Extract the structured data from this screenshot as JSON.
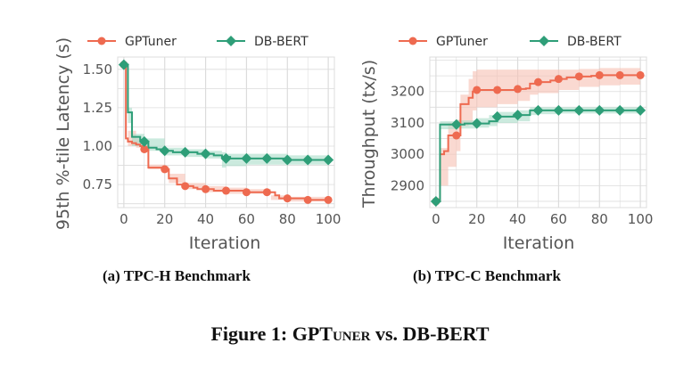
{
  "figure_caption": {
    "label": "Figure 1:",
    "name_main": "GPT",
    "name_smallcaps": "uner",
    "rest": "vs. DB-BERT"
  },
  "subcaptions": {
    "a": "(a) TPC-H Benchmark",
    "b": "(b) TPC-C Benchmark"
  },
  "colors": {
    "gptuner": "#ee6a50",
    "dbbert": "#2e9e78",
    "gptuner_band": "#f7c0b2",
    "dbbert_band": "#a9dcc8",
    "grid": "#dcdcdc",
    "axis_text": "#555555"
  },
  "chart_data": [
    {
      "type": "line",
      "xlabel": "Iteration",
      "ylabel": "95th %-tile Latency (s)",
      "xlim": [
        -3,
        103
      ],
      "ylim": [
        0.6,
        1.58
      ],
      "xticks": [
        0,
        20,
        40,
        60,
        80,
        100
      ],
      "yticks": [
        0.75,
        1.0,
        1.25,
        1.5
      ],
      "ytick_labels": [
        "0.75",
        "1.00",
        "1.25",
        "1.50"
      ],
      "grid": true,
      "legend": "top",
      "series": [
        {
          "name": "GPTuner",
          "marker": "circle",
          "color": "#ee6a50",
          "x": [
            0,
            1,
            2,
            4,
            6,
            8,
            10,
            12,
            16,
            18,
            20,
            22,
            26,
            30,
            34,
            36,
            40,
            44,
            50,
            56,
            60,
            64,
            70,
            74,
            76,
            80,
            84,
            90,
            94,
            100
          ],
          "y": [
            1.53,
            1.05,
            1.03,
            1.02,
            1.01,
            1.0,
            0.98,
            0.86,
            0.86,
            0.86,
            0.85,
            0.79,
            0.75,
            0.74,
            0.73,
            0.72,
            0.72,
            0.71,
            0.71,
            0.71,
            0.7,
            0.7,
            0.7,
            0.68,
            0.66,
            0.66,
            0.66,
            0.65,
            0.65,
            0.65
          ],
          "marker_x": [
            0,
            10,
            20,
            30,
            40,
            50,
            60,
            70,
            80,
            90,
            100
          ],
          "marker_y": [
            1.53,
            0.98,
            0.85,
            0.74,
            0.72,
            0.71,
            0.7,
            0.7,
            0.66,
            0.65,
            0.65
          ],
          "band_x": [
            0,
            2,
            6,
            10,
            12,
            20,
            22,
            30,
            40,
            50,
            60,
            70,
            72,
            80,
            90,
            100
          ],
          "band_lo": [
            1.53,
            1.0,
            0.99,
            0.96,
            0.85,
            0.84,
            0.76,
            0.72,
            0.7,
            0.69,
            0.69,
            0.69,
            0.65,
            0.64,
            0.64,
            0.64
          ],
          "band_hi": [
            1.53,
            1.1,
            1.05,
            1.02,
            0.88,
            0.87,
            0.82,
            0.76,
            0.74,
            0.73,
            0.72,
            0.72,
            0.68,
            0.67,
            0.67,
            0.67
          ]
        },
        {
          "name": "DB-BERT",
          "marker": "diamond",
          "color": "#2e9e78",
          "x": [
            0,
            2,
            4,
            8,
            10,
            12,
            16,
            20,
            24,
            30,
            36,
            40,
            44,
            48,
            52,
            60,
            64,
            70,
            74,
            80,
            84,
            90,
            94,
            100
          ],
          "y": [
            1.53,
            1.22,
            1.06,
            1.04,
            1.03,
            0.99,
            0.98,
            0.97,
            0.96,
            0.96,
            0.95,
            0.95,
            0.94,
            0.93,
            0.92,
            0.92,
            0.92,
            0.92,
            0.92,
            0.91,
            0.91,
            0.91,
            0.91,
            0.91
          ],
          "marker_x": [
            0,
            10,
            20,
            30,
            40,
            50,
            60,
            70,
            80,
            90,
            100
          ],
          "marker_y": [
            1.53,
            1.03,
            0.97,
            0.96,
            0.95,
            0.92,
            0.92,
            0.92,
            0.91,
            0.91,
            0.91
          ],
          "band_x": [
            0,
            2,
            4,
            10,
            20,
            30,
            40,
            48,
            50,
            60,
            70,
            80,
            90,
            100
          ],
          "band_lo": [
            1.53,
            1.15,
            1.0,
            0.97,
            0.94,
            0.93,
            0.92,
            0.86,
            0.87,
            0.88,
            0.88,
            0.88,
            0.88,
            0.89
          ],
          "band_hi": [
            1.53,
            1.25,
            1.08,
            1.05,
            0.99,
            0.98,
            0.97,
            0.96,
            0.95,
            0.95,
            0.95,
            0.94,
            0.94,
            0.93
          ]
        }
      ]
    },
    {
      "type": "line",
      "xlabel": "Iteration",
      "ylabel": "Throughput (tx/s)",
      "xlim": [
        -3,
        103
      ],
      "ylim": [
        2830,
        3310
      ],
      "xticks": [
        0,
        20,
        40,
        60,
        80,
        100
      ],
      "yticks": [
        2900,
        3000,
        3100,
        3200
      ],
      "ytick_labels": [
        "2900",
        "3000",
        "3100",
        "3200"
      ],
      "grid": true,
      "legend": "top",
      "series": [
        {
          "name": "GPTuner",
          "marker": "circle",
          "color": "#ee6a50",
          "x": [
            0,
            2,
            4,
            6,
            10,
            12,
            16,
            18,
            20,
            26,
            30,
            40,
            44,
            46,
            50,
            56,
            60,
            64,
            70,
            76,
            80,
            90,
            100
          ],
          "y": [
            2850,
            3000,
            3010,
            3060,
            3060,
            3160,
            3180,
            3200,
            3205,
            3205,
            3205,
            3208,
            3210,
            3225,
            3230,
            3235,
            3240,
            3245,
            3248,
            3250,
            3252,
            3252,
            3252
          ],
          "marker_x": [
            0,
            10,
            20,
            30,
            40,
            50,
            60,
            70,
            80,
            90,
            100
          ],
          "marker_y": [
            2850,
            3060,
            3205,
            3205,
            3208,
            3230,
            3240,
            3248,
            3252,
            3252,
            3252
          ],
          "band_x": [
            0,
            2,
            6,
            10,
            12,
            16,
            18,
            20,
            30,
            40,
            46,
            50,
            60,
            70,
            80,
            90,
            100
          ],
          "band_lo": [
            2850,
            2900,
            2960,
            3010,
            3090,
            3100,
            3140,
            3150,
            3160,
            3170,
            3190,
            3195,
            3205,
            3215,
            3220,
            3222,
            3222
          ],
          "band_hi": [
            2850,
            3020,
            3100,
            3110,
            3190,
            3240,
            3265,
            3270,
            3270,
            3270,
            3270,
            3270,
            3270,
            3272,
            3275,
            3275,
            3275
          ]
        },
        {
          "name": "DB-BERT",
          "marker": "diamond",
          "color": "#2e9e78",
          "x": [
            0,
            2,
            4,
            10,
            14,
            20,
            26,
            30,
            36,
            40,
            46,
            50,
            60,
            70,
            80,
            90,
            100
          ],
          "y": [
            2850,
            3095,
            3095,
            3095,
            3098,
            3098,
            3105,
            3120,
            3120,
            3125,
            3140,
            3140,
            3140,
            3140,
            3140,
            3140,
            3140
          ],
          "marker_x": [
            0,
            10,
            20,
            30,
            40,
            50,
            60,
            70,
            80,
            90,
            100
          ],
          "marker_y": [
            2850,
            3095,
            3098,
            3120,
            3125,
            3140,
            3140,
            3140,
            3140,
            3140,
            3140
          ],
          "band_x": [
            0,
            2,
            10,
            20,
            26,
            30,
            40,
            46,
            50,
            60,
            70,
            80,
            90,
            100
          ],
          "band_lo": [
            2850,
            3080,
            3082,
            3085,
            3090,
            3100,
            3105,
            3125,
            3128,
            3130,
            3130,
            3130,
            3130,
            3130
          ],
          "band_hi": [
            2850,
            3105,
            3108,
            3115,
            3125,
            3135,
            3140,
            3150,
            3150,
            3150,
            3150,
            3150,
            3150,
            3150
          ]
        }
      ]
    }
  ]
}
